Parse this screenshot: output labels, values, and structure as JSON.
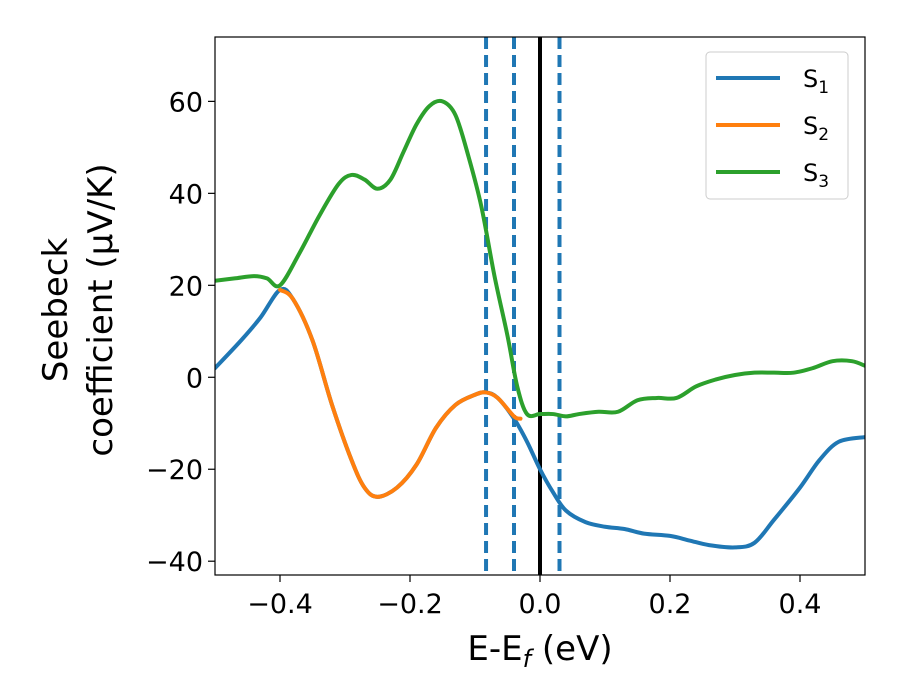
{
  "chart_data": {
    "type": "line",
    "xlabel": {
      "main": "E-E",
      "sub": "f",
      "tail": " (eV)"
    },
    "ylabel": {
      "line1": "Seebeck",
      "line2": "coefficient  (μV/K)"
    },
    "xlim": [
      -0.5,
      0.5
    ],
    "ylim": [
      -43,
      74
    ],
    "xticks": [
      -0.4,
      -0.2,
      0.0,
      0.2,
      0.4
    ],
    "xtick_labels": [
      "−0.4",
      "−0.2",
      "0.0",
      "0.2",
      "0.4"
    ],
    "yticks": [
      -40,
      -20,
      0,
      20,
      40,
      60
    ],
    "ytick_labels": [
      "−40",
      "−20",
      "0",
      "20",
      "40",
      "60"
    ],
    "grid": false,
    "legend_position": "top-right",
    "vertical_lines": [
      {
        "x": -0.083,
        "style": "dashed",
        "color": "#1f77b4"
      },
      {
        "x": -0.04,
        "style": "dashed",
        "color": "#1f77b4"
      },
      {
        "x": 0.0,
        "style": "solid",
        "color": "#000000"
      },
      {
        "x": 0.03,
        "style": "dashed",
        "color": "#1f77b4"
      }
    ],
    "series": [
      {
        "name": "S",
        "name_sub": "1",
        "color": "#1f77b4",
        "points": [
          [
            -0.5,
            2
          ],
          [
            -0.46,
            8
          ],
          [
            -0.43,
            13
          ],
          [
            -0.4,
            19
          ],
          [
            -0.38,
            17
          ],
          [
            -0.35,
            8
          ],
          [
            -0.32,
            -6
          ],
          [
            -0.29,
            -18
          ],
          [
            -0.27,
            -24
          ],
          [
            -0.25,
            -26
          ],
          [
            -0.22,
            -24
          ],
          [
            -0.19,
            -19
          ],
          [
            -0.16,
            -11
          ],
          [
            -0.13,
            -6
          ],
          [
            -0.1,
            -3.8
          ],
          [
            -0.083,
            -3.3
          ],
          [
            -0.065,
            -4.5
          ],
          [
            -0.04,
            -9
          ],
          [
            -0.02,
            -14
          ],
          [
            0.0,
            -20
          ],
          [
            0.02,
            -25
          ],
          [
            0.04,
            -29
          ],
          [
            0.07,
            -31.5
          ],
          [
            0.1,
            -32.5
          ],
          [
            0.13,
            -33
          ],
          [
            0.16,
            -34
          ],
          [
            0.2,
            -34.5
          ],
          [
            0.23,
            -35.5
          ],
          [
            0.26,
            -36.5
          ],
          [
            0.3,
            -37
          ],
          [
            0.33,
            -36
          ],
          [
            0.36,
            -31
          ],
          [
            0.4,
            -24
          ],
          [
            0.43,
            -18
          ],
          [
            0.46,
            -14
          ],
          [
            0.5,
            -13
          ]
        ]
      },
      {
        "name": "S",
        "name_sub": "2",
        "color": "#ff7f0e",
        "points": [
          [
            -0.4,
            19
          ],
          [
            -0.38,
            17
          ],
          [
            -0.35,
            8
          ],
          [
            -0.32,
            -6
          ],
          [
            -0.29,
            -18
          ],
          [
            -0.27,
            -24
          ],
          [
            -0.25,
            -26
          ],
          [
            -0.22,
            -24
          ],
          [
            -0.19,
            -19
          ],
          [
            -0.16,
            -11
          ],
          [
            -0.13,
            -6
          ],
          [
            -0.1,
            -3.8
          ],
          [
            -0.083,
            -3.3
          ],
          [
            -0.065,
            -4.5
          ],
          [
            -0.04,
            -8.5
          ],
          [
            -0.03,
            -9
          ]
        ]
      },
      {
        "name": "S",
        "name_sub": "3",
        "color": "#2ca02c",
        "points": [
          [
            -0.5,
            21
          ],
          [
            -0.47,
            21.5
          ],
          [
            -0.44,
            22
          ],
          [
            -0.42,
            21.5
          ],
          [
            -0.4,
            20
          ],
          [
            -0.37,
            27
          ],
          [
            -0.34,
            35
          ],
          [
            -0.31,
            42
          ],
          [
            -0.29,
            44
          ],
          [
            -0.27,
            43
          ],
          [
            -0.25,
            41
          ],
          [
            -0.23,
            43
          ],
          [
            -0.21,
            49
          ],
          [
            -0.19,
            55
          ],
          [
            -0.17,
            59
          ],
          [
            -0.15,
            60
          ],
          [
            -0.13,
            57
          ],
          [
            -0.11,
            48
          ],
          [
            -0.09,
            37
          ],
          [
            -0.07,
            22
          ],
          [
            -0.05,
            9
          ],
          [
            -0.035,
            -2
          ],
          [
            -0.02,
            -8
          ],
          [
            0.0,
            -8
          ],
          [
            0.02,
            -8
          ],
          [
            0.04,
            -8.5
          ],
          [
            0.06,
            -8
          ],
          [
            0.09,
            -7.5
          ],
          [
            0.12,
            -7.5
          ],
          [
            0.15,
            -5
          ],
          [
            0.18,
            -4.5
          ],
          [
            0.21,
            -4.5
          ],
          [
            0.24,
            -2
          ],
          [
            0.27,
            -0.5
          ],
          [
            0.3,
            0.5
          ],
          [
            0.33,
            1
          ],
          [
            0.36,
            1
          ],
          [
            0.39,
            1
          ],
          [
            0.42,
            2
          ],
          [
            0.45,
            3.5
          ],
          [
            0.48,
            3.5
          ],
          [
            0.5,
            2.5
          ]
        ]
      }
    ]
  }
}
